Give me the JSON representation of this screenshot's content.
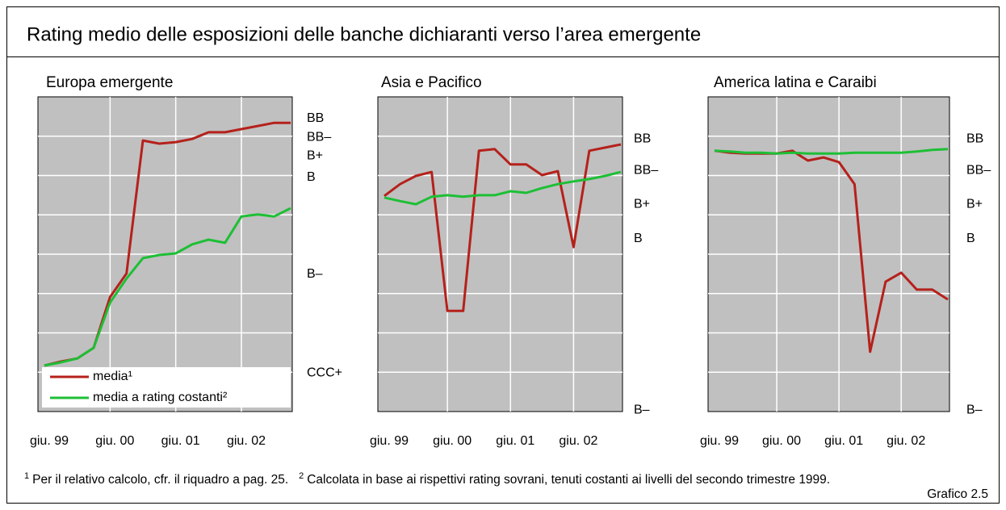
{
  "title": "Rating medio delle esposizioni delle banche dichiaranti verso l’area emergente",
  "chart_data": [
    {
      "type": "line",
      "subtitle": "Europa emergente",
      "categories": [
        "giu. 99",
        null,
        null,
        null,
        "giu. 00",
        null,
        null,
        null,
        "giu. 01",
        null,
        null,
        null,
        "giu. 02",
        null,
        null,
        null
      ],
      "series": [
        {
          "name": "media¹",
          "color": "#b5211b",
          "values": [
            1.17,
            1.27,
            1.35,
            1.62,
            2.91,
            3.51,
            6.89,
            6.81,
            6.85,
            6.93,
            7.1,
            7.1,
            7.18,
            7.26,
            7.34,
            7.34
          ]
        },
        {
          "name": "media a rating costanti²",
          "color": "#1dbf35",
          "values": [
            1.17,
            1.25,
            1.35,
            1.62,
            2.77,
            3.38,
            3.9,
            3.98,
            4.02,
            4.25,
            4.37,
            4.29,
            4.96,
            5.01,
            4.96,
            5.17
          ]
        }
      ],
      "ylim": [
        0,
        8
      ],
      "yticks": [
        {
          "value": 7.45,
          "label": "BB"
        },
        {
          "value": 6.97,
          "label": "BB–"
        },
        {
          "value": 6.5,
          "label": "B+"
        },
        {
          "value": 5.95,
          "label": "B"
        },
        {
          "value": 3.49,
          "label": "B–"
        },
        {
          "value": 0.98,
          "label": "CCC+"
        }
      ],
      "ygrid": [
        1,
        2,
        3,
        4,
        5,
        6,
        7
      ],
      "legend": "bottom-left"
    },
    {
      "type": "line",
      "subtitle": "Asia e Pacifico",
      "categories": [
        "giu. 99",
        null,
        null,
        null,
        "giu. 00",
        null,
        null,
        null,
        "giu. 01",
        null,
        null,
        null,
        "giu. 02",
        null,
        null,
        null
      ],
      "series": [
        {
          "color": "#b5211b",
          "values": [
            5.48,
            5.78,
            5.99,
            6.09,
            2.56,
            2.56,
            6.63,
            6.67,
            6.28,
            6.28,
            6.01,
            6.11,
            4.18,
            6.63,
            6.71,
            6.79
          ]
        },
        {
          "color": "#1dbf35",
          "values": [
            5.44,
            5.35,
            5.27,
            5.46,
            5.5,
            5.46,
            5.5,
            5.5,
            5.6,
            5.56,
            5.68,
            5.78,
            5.85,
            5.91,
            5.99,
            6.09
          ]
        }
      ],
      "ylim": [
        0,
        8
      ],
      "yticks": [
        {
          "value": 6.93,
          "label": "BB"
        },
        {
          "value": 6.13,
          "label": "BB–"
        },
        {
          "value": 5.27,
          "label": "B+"
        },
        {
          "value": 4.39,
          "label": "B"
        },
        {
          "value": 0.04,
          "label": "B–"
        }
      ],
      "ygrid": [
        1,
        2,
        3,
        4,
        5,
        6,
        7
      ]
    },
    {
      "type": "line",
      "subtitle": "America latina e Caraibi",
      "categories": [
        "giu. 99",
        null,
        null,
        null,
        "giu. 00",
        null,
        null,
        null,
        "giu. 01",
        null,
        null,
        null,
        "giu. 02",
        null,
        null,
        null
      ],
      "series": [
        {
          "color": "#b5211b",
          "values": [
            6.63,
            6.58,
            6.56,
            6.56,
            6.56,
            6.63,
            6.38,
            6.46,
            6.34,
            5.78,
            1.52,
            3.3,
            3.53,
            3.1,
            3.1,
            2.85
          ]
        },
        {
          "color": "#1dbf35",
          "values": [
            6.63,
            6.61,
            6.58,
            6.58,
            6.56,
            6.58,
            6.56,
            6.56,
            6.56,
            6.58,
            6.58,
            6.58,
            6.58,
            6.61,
            6.65,
            6.67
          ]
        }
      ],
      "ylim": [
        0,
        8
      ],
      "yticks": [
        {
          "value": 6.93,
          "label": "BB"
        },
        {
          "value": 6.13,
          "label": "BB–"
        },
        {
          "value": 5.27,
          "label": "B+"
        },
        {
          "value": 4.39,
          "label": "B"
        },
        {
          "value": 0.04,
          "label": "B–"
        }
      ],
      "ygrid": [
        1,
        2,
        3,
        4,
        5,
        6,
        7
      ]
    }
  ],
  "footnotes": [
    {
      "mark": "1",
      "text": "Per il relativo calcolo, cfr. il riquadro a pag. 25."
    },
    {
      "mark": "2",
      "text": "Calcolata in base ai rispettivi rating sovrani, tenuti costanti ai livelli del secondo trimestre 1999."
    }
  ],
  "figure_label": "Grafico 2.5"
}
